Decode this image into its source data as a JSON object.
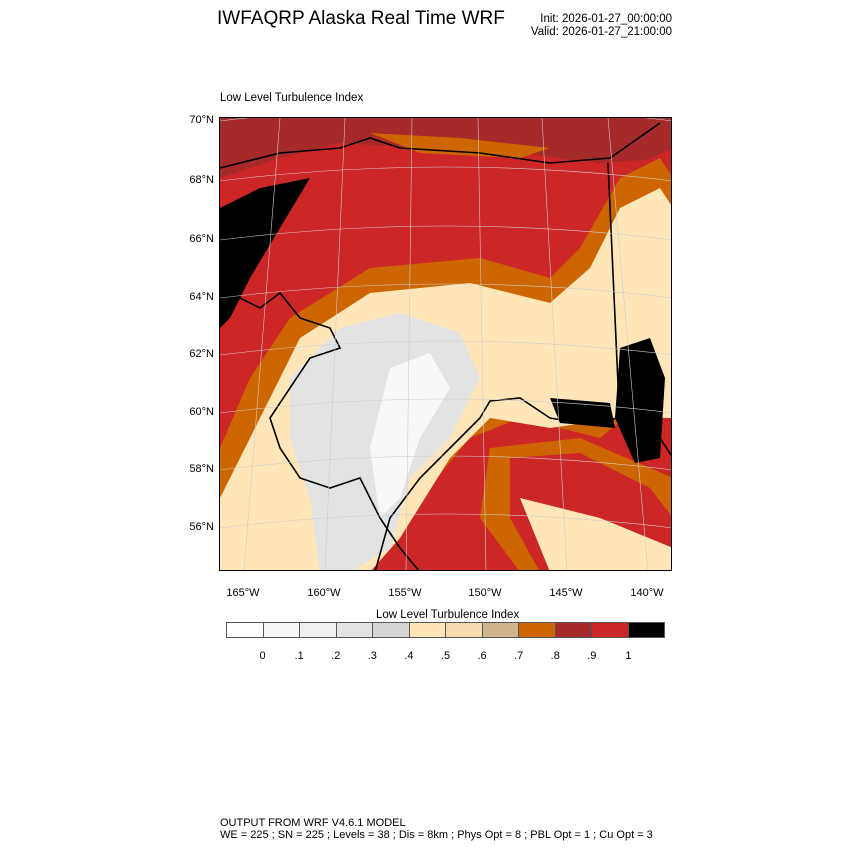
{
  "header": {
    "title": "IWFAQRP Alaska Real Time WRF",
    "init": "Init: 2026-01-27_00:00:00",
    "valid": "Valid: 2026-01-27_21:00:00"
  },
  "map": {
    "subtitle": "Low Level Turbulence Index",
    "lat_labels": [
      "70°N",
      "68°N",
      "66°N",
      "64°N",
      "62°N",
      "60°N",
      "58°N",
      "56°N"
    ],
    "lon_labels": [
      "165°W",
      "160°W",
      "155°W",
      "150°W",
      "145°W",
      "140°W"
    ]
  },
  "colorbar": {
    "title": "Low Level Turbulence Index",
    "colors": [
      "#ffffff",
      "#f7f7f7",
      "#efefef",
      "#e3e3e3",
      "#d5d5d5",
      "#ffe6b8",
      "#f5dcb0",
      "#d2b48c",
      "#cd6600",
      "#a52a2a",
      "#cd2626",
      "#000000"
    ],
    "labels": [
      "0",
      ".1",
      ".2",
      ".3",
      ".4",
      ".5",
      ".6",
      ".7",
      ".8",
      ".9",
      "1"
    ]
  },
  "footer": {
    "line1": "OUTPUT FROM WRF V4.6.1 MODEL",
    "line2": "WE = 225 ; SN = 225 ; Levels = 38 ; Dis = 8km ; Phys Opt = 8 ; PBL Opt = 1 ; Cu Opt = 3"
  }
}
